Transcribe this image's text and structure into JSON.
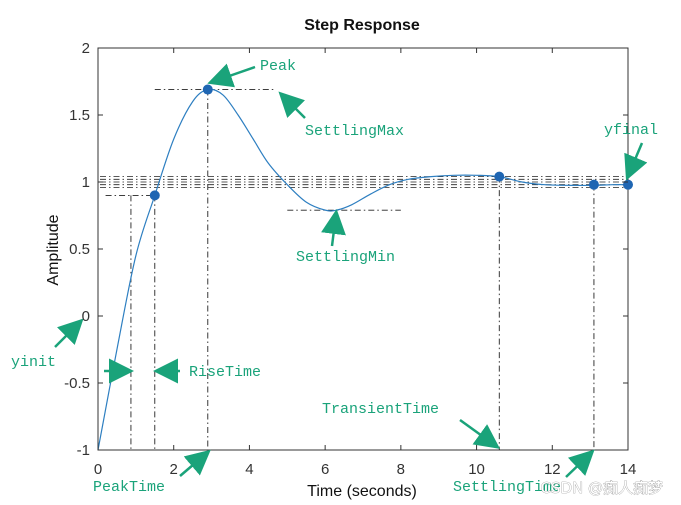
{
  "chart_data": {
    "type": "line",
    "title": "Step Response",
    "xlabel": "Time (seconds)",
    "ylabel": "Amplitude",
    "xlim": [
      0,
      14
    ],
    "ylim": [
      -1,
      2
    ],
    "xticks": [
      0,
      2,
      4,
      6,
      8,
      10,
      12,
      14
    ],
    "yticks": [
      -1,
      -0.5,
      0,
      0.5,
      1,
      1.5,
      2
    ],
    "xtick_labels": [
      "0",
      "2",
      "4",
      "6",
      "8",
      "10",
      "12",
      "14"
    ],
    "ytick_labels": [
      "-1",
      "-0.5",
      "0",
      "0.5",
      "1",
      "1.5",
      "2"
    ],
    "grid": false,
    "series": [
      {
        "x": [
          0,
          0.5,
          1.0,
          1.5,
          2.0,
          2.5,
          2.9,
          3.3,
          3.7,
          4.1,
          4.5,
          5.0,
          5.5,
          6.0,
          6.3,
          6.7,
          7.2,
          7.7,
          8.2,
          8.8,
          9.4,
          10.0,
          10.6,
          11.2,
          11.8,
          12.5,
          13.1,
          13.6,
          14.0
        ],
        "y": [
          -1.0,
          -0.25,
          0.45,
          0.9,
          1.32,
          1.6,
          1.69,
          1.65,
          1.5,
          1.32,
          1.14,
          0.98,
          0.85,
          0.79,
          0.79,
          0.83,
          0.91,
          0.98,
          1.02,
          1.04,
          1.05,
          1.05,
          1.04,
          1.0,
          0.98,
          0.975,
          0.975,
          0.98,
          0.98
        ]
      }
    ],
    "markers": [
      {
        "name": "RiseTime",
        "x": 1.5,
        "y": 0.9
      },
      {
        "name": "Peak",
        "x": 2.9,
        "y": 1.69
      },
      {
        "name": "TransientTime",
        "x": 10.6,
        "y": 1.04
      },
      {
        "name": "SettlingTime",
        "x": 13.1,
        "y": 0.98
      },
      {
        "name": "yfinal",
        "x": 14.0,
        "y": 0.98
      }
    ],
    "reference_lines": {
      "horizontal_y": [
        1.04,
        1.02,
        1.0,
        0.98,
        0.96
      ],
      "rise_vertical_x": [
        0.87,
        1.5
      ],
      "rise_level_y": 0.9,
      "peak_x": 2.9,
      "peak_y": 1.69,
      "settling_min_x": 6.2,
      "settling_min_y": 0.79,
      "transient_x": 10.6,
      "settling_x": 13.1
    },
    "annotations": [
      {
        "text": "Peak",
        "color": "#1aa37a"
      },
      {
        "text": "SettlingMax",
        "color": "#1aa37a"
      },
      {
        "text": "yfinal",
        "color": "#1aa37a"
      },
      {
        "text": "SettlingMin",
        "color": "#1aa37a"
      },
      {
        "text": "yinit",
        "color": "#1aa37a"
      },
      {
        "text": "RiseTime",
        "color": "#1aa37a"
      },
      {
        "text": "TransientTime",
        "color": "#1aa37a"
      },
      {
        "text": "PeakTime",
        "color": "#1aa37a"
      },
      {
        "text": "SettlingTime",
        "color": "#1aa37a"
      }
    ],
    "colors": {
      "line": "#2e7fc1",
      "marker": "#1f66b3",
      "reference": "#222222",
      "annotation": "#1aa37a"
    }
  },
  "watermark": "CSDN @痴人痴梦"
}
